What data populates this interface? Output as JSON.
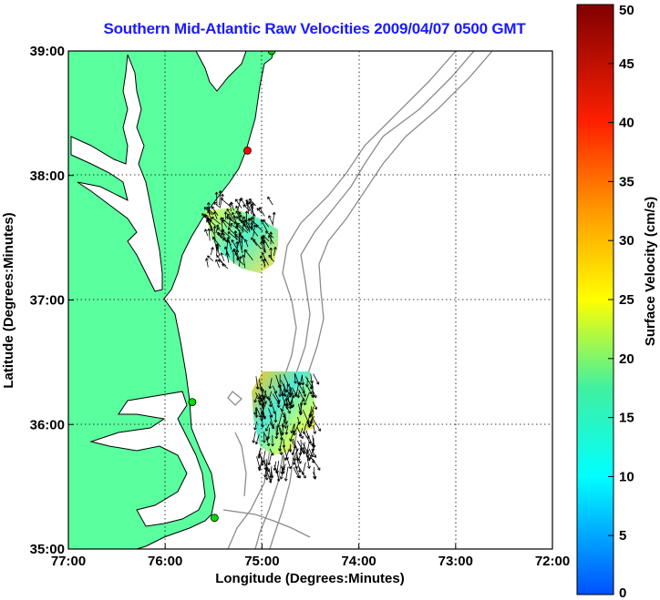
{
  "title": "Southern Mid-Atlantic Raw Velocities 2009/04/07 0500 GMT",
  "x_axis": {
    "label": "Longitude (Degrees:Minutes)",
    "ticks": [
      "77:00",
      "76:00",
      "75:00",
      "74:00",
      "73:00",
      "72:00"
    ],
    "range": [
      -77,
      -72
    ]
  },
  "y_axis": {
    "label": "Latitude (Degrees:Minutes)",
    "ticks": [
      "39:00",
      "38:00",
      "37:00",
      "36:00",
      "35:00"
    ],
    "range": [
      35,
      39
    ]
  },
  "colorbar": {
    "label": "Surface Velocity (cm/s)",
    "ticks": [
      "0",
      "5",
      "10",
      "15",
      "20",
      "25",
      "30",
      "35",
      "40",
      "45",
      "50"
    ],
    "range": [
      0,
      50
    ],
    "colors": [
      "#0000ff",
      "#00ffff",
      "#ffff00",
      "#ff0000",
      "#800000"
    ]
  },
  "colors": {
    "land": "#5aff9e",
    "coast": "#000000",
    "bathymetry": "#8c8c8c",
    "grid": "#000000",
    "title": "#1a1aff"
  },
  "stations": [
    {
      "lon": -74.9,
      "lat": 39.0,
      "color": "#00dd00"
    },
    {
      "lon": -75.15,
      "lat": 38.2,
      "color": "#ff0000"
    },
    {
      "lon": -75.72,
      "lat": 36.18,
      "color": "#00dd00"
    },
    {
      "lon": -75.49,
      "lat": 35.25,
      "color": "#00dd00"
    }
  ]
}
